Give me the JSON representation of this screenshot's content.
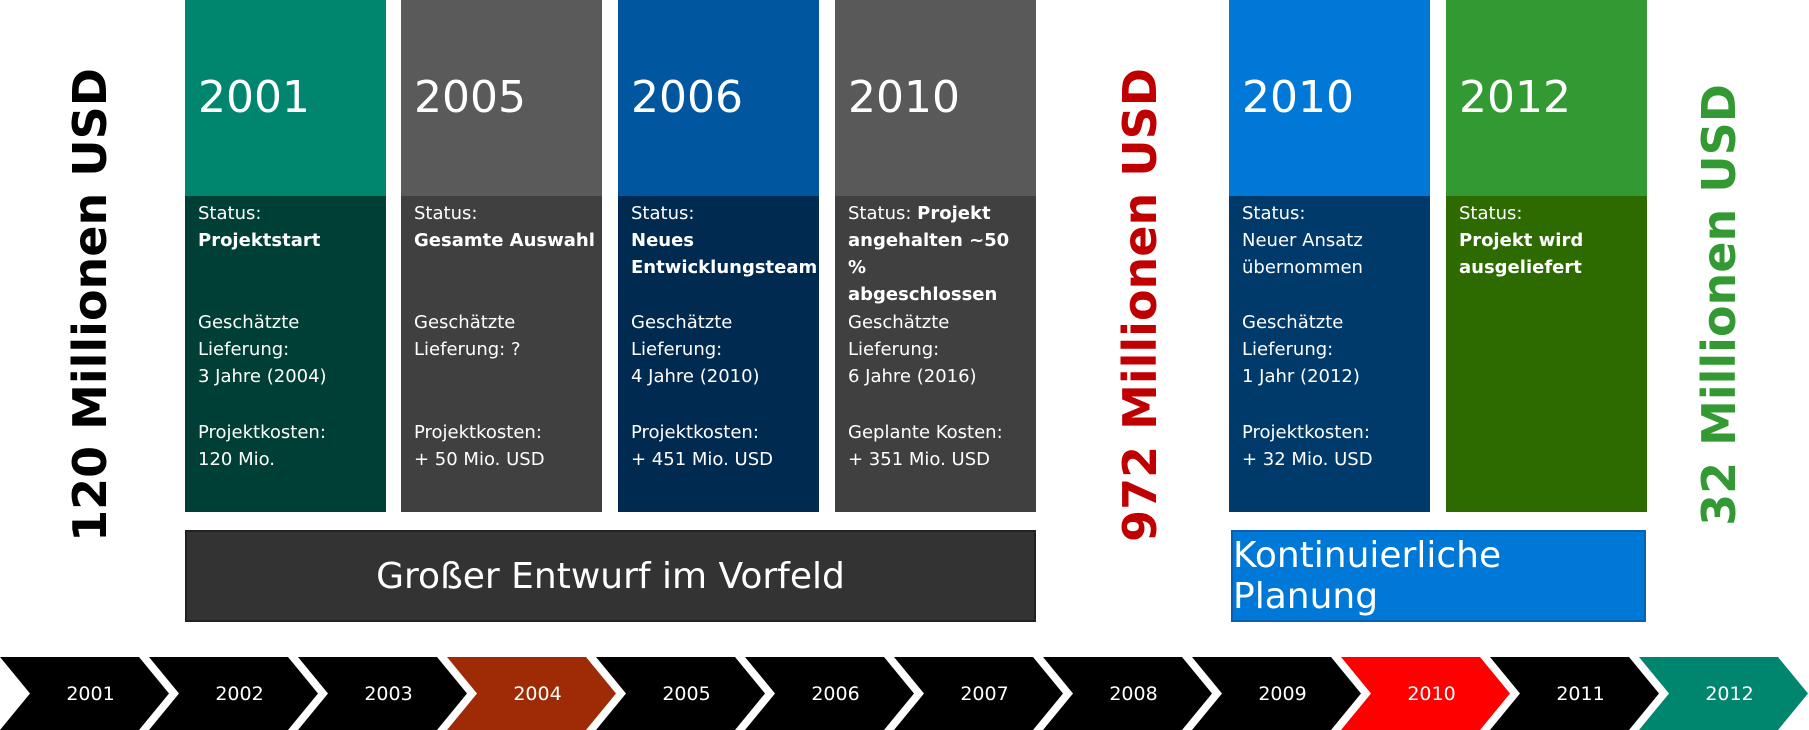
{
  "side_labels": [
    {
      "text": "120 Millionen USD",
      "color": "#000000"
    },
    {
      "text": "972 Millionen USD",
      "color": "#c00000"
    },
    {
      "text": "32 Millionen USD",
      "color": "#339933"
    }
  ],
  "cards": [
    {
      "year": "2001",
      "top_color": "#00856f",
      "body_color": "#003f35",
      "status_label": "Status:",
      "status_inline": false,
      "status_bold": true,
      "status_lines": [
        "Projektstart"
      ],
      "delivery_lines": [
        "Geschätzte",
        "Lieferung:",
        "3 Jahre (2004)"
      ],
      "cost_lines": [
        "Projektkosten:",
        "120 Mio."
      ]
    },
    {
      "year": "2005",
      "top_color": "#5a5a5a",
      "body_color": "#404040",
      "status_label": "Status:",
      "status_inline": false,
      "status_bold": true,
      "status_lines": [
        "Gesamte Auswahl"
      ],
      "delivery_lines": [
        "Geschätzte",
        "Lieferung: ?"
      ],
      "cost_lines": [
        "Projektkosten:",
        "+ 50 Mio. USD"
      ]
    },
    {
      "year": "2006",
      "top_color": "#0057a0",
      "body_color": "#002a50",
      "status_label": "Status:",
      "status_inline": false,
      "status_bold": true,
      "status_lines": [
        "Neues",
        "Entwicklungsteam"
      ],
      "delivery_lines": [
        "Geschätzte",
        "Lieferung:",
        "4 Jahre (2010)"
      ],
      "cost_lines": [
        "Projektkosten:",
        "+ 451 Mio. USD"
      ]
    },
    {
      "year": "2010",
      "top_color": "#595959",
      "body_color": "#404040",
      "status_label": "Status:",
      "status_inline": true,
      "status_bold": true,
      "status_lines": [
        "Projekt",
        "angehalten ~50 %",
        "abgeschlossen"
      ],
      "delivery_lines": [
        "Geschätzte",
        "Lieferung:",
        "6 Jahre (2016)"
      ],
      "cost_lines": [
        "Geplante Kosten:",
        "+ 351 Mio. USD"
      ]
    },
    {
      "year": "2010",
      "top_color": "#0078d7",
      "body_color": "#003a6b",
      "status_label": "Status:",
      "status_inline": false,
      "status_bold": false,
      "status_lines": [
        "Neuer Ansatz",
        "übernommen"
      ],
      "delivery_lines": [
        "Geschätzte",
        "Lieferung:",
        "1 Jahr (2012)"
      ],
      "cost_lines": [
        "Projektkosten:",
        "+ 32 Mio. USD"
      ]
    },
    {
      "year": "2012",
      "top_color": "#339933",
      "body_color": "#2d6b00",
      "status_label": "Status:",
      "status_inline": false,
      "status_bold": true,
      "status_lines": [
        "Projekt wird",
        "ausgeliefert"
      ],
      "delivery_lines": [],
      "cost_lines": []
    }
  ],
  "phases": [
    {
      "text": "Großer Entwurf im Vorfeld",
      "color": "#333333"
    },
    {
      "text": "Kontinuierliche Planung",
      "color": "#0078d7"
    }
  ],
  "timeline": [
    {
      "year": "2001",
      "color": "#000000"
    },
    {
      "year": "2002",
      "color": "#000000"
    },
    {
      "year": "2003",
      "color": "#000000"
    },
    {
      "year": "2004",
      "color": "#9e2a06"
    },
    {
      "year": "2005",
      "color": "#000000"
    },
    {
      "year": "2006",
      "color": "#000000"
    },
    {
      "year": "2007",
      "color": "#000000"
    },
    {
      "year": "2008",
      "color": "#000000"
    },
    {
      "year": "2009",
      "color": "#000000"
    },
    {
      "year": "2010",
      "color": "#ff0000"
    },
    {
      "year": "2011",
      "color": "#000000"
    },
    {
      "year": "2012",
      "color": "#00856f"
    }
  ]
}
